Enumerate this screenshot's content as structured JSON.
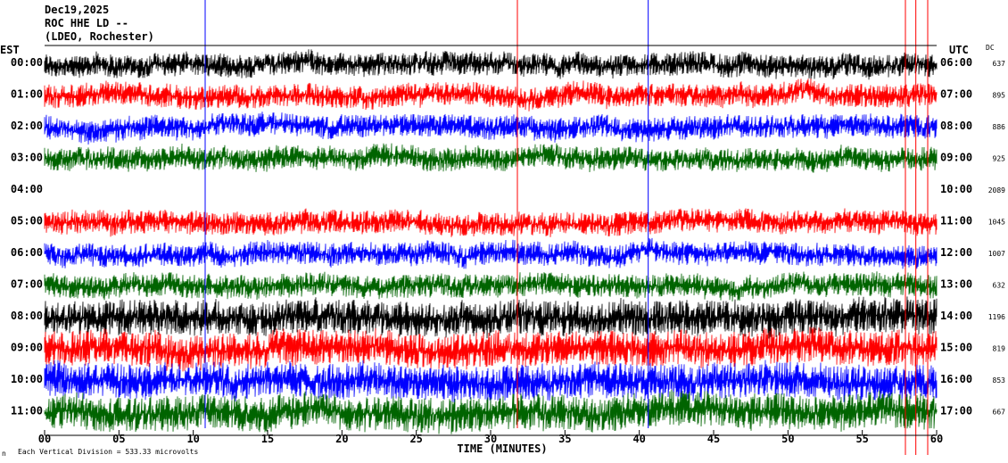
{
  "header": {
    "line1": "Dec19,2025",
    "line2": "ROC HHE LD --",
    "line3": "(LDEO, Rochester)"
  },
  "left_tz": "EST",
  "right_tz": "UTC",
  "dc_header": "DC",
  "footer_note": "Each Vertical Division = 533.33 microvolts",
  "chart_data": {
    "type": "line",
    "title": "Dec19,2025 ROC HHE LD -- (LDEO, Rochester)",
    "xlabel": "TIME (MINUTES)",
    "ylabel": "",
    "xlim": [
      0,
      60
    ],
    "x_ticks": [
      "00",
      "05",
      "10",
      "15",
      "20",
      "25",
      "30",
      "35",
      "40",
      "45",
      "50",
      "55",
      "60"
    ],
    "left_hours": [
      "00:00",
      "01:00",
      "02:00",
      "03:00",
      "04:00",
      "05:00",
      "06:00",
      "07:00",
      "08:00",
      "09:00",
      "10:00",
      "11:00"
    ],
    "right_hours": [
      "06:00",
      "07:00",
      "08:00",
      "09:00",
      "10:00",
      "11:00",
      "12:00",
      "13:00",
      "14:00",
      "15:00",
      "16:00",
      "17:00"
    ],
    "dc_values": [
      "637",
      "895",
      "886",
      "925",
      "2089",
      "1045",
      "1007",
      "632",
      "1196",
      "819",
      "853",
      "667"
    ],
    "trace_colors": [
      "#000000",
      "#ff0000",
      "#0000ff",
      "#006400"
    ],
    "trace_color_names": [
      "black",
      "red",
      "blue",
      "green"
    ],
    "spikes": [
      {
        "minute": 10.8,
        "color": "#0000ff"
      },
      {
        "minute": 31.8,
        "color": "#ff0000"
      },
      {
        "minute": 40.6,
        "color": "#0000ff"
      },
      {
        "minute": 57.9,
        "color": "#ff0000"
      },
      {
        "minute": 58.6,
        "color": "#ff0000"
      },
      {
        "minute": 59.4,
        "color": "#ff0000"
      }
    ],
    "vertical_division_microvolts": 533.33,
    "grid": false
  }
}
